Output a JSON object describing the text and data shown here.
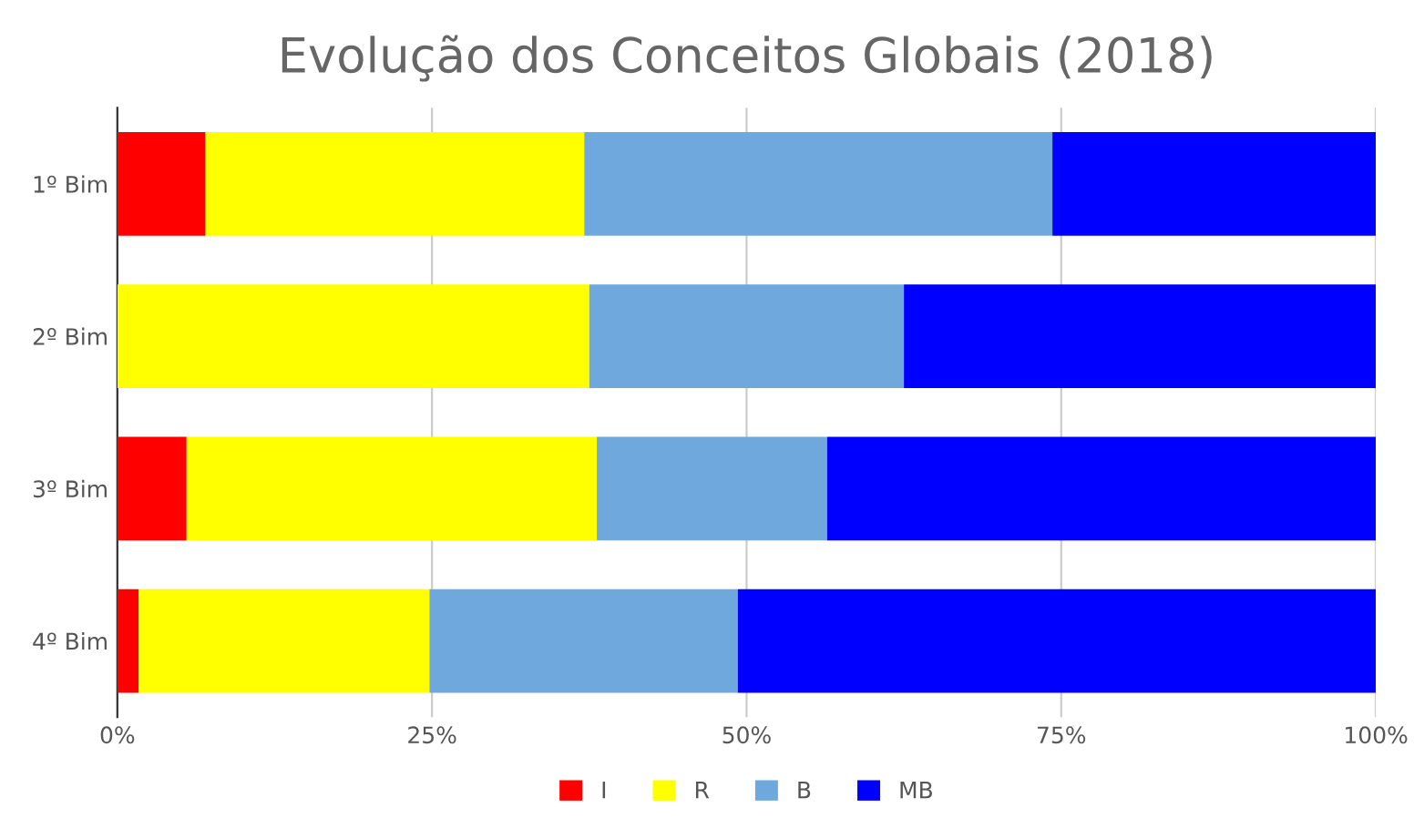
{
  "chart_data": {
    "type": "bar",
    "orientation": "horizontal",
    "stacked": true,
    "title": "Evolução dos Conceitos Globais (2018)",
    "categories": [
      "1º Bim",
      "2º Bim",
      "3º Bim",
      "4º Bim"
    ],
    "series": [
      {
        "name": "I",
        "color": "#ff0000",
        "values": [
          7.0,
          0,
          5.5,
          1.7
        ]
      },
      {
        "name": "R",
        "color": "#ffff00",
        "values": [
          30.1,
          37.5,
          32.6,
          23.1
        ]
      },
      {
        "name": "B",
        "color": "#6fa8dc",
        "values": [
          37.2,
          25.0,
          18.3,
          24.5
        ]
      },
      {
        "name": "MB",
        "color": "#0000ff",
        "values": [
          25.7,
          37.5,
          43.6,
          50.7
        ]
      }
    ],
    "xlim": [
      0,
      100
    ],
    "xticks": [
      {
        "value": 0,
        "label": "0%"
      },
      {
        "value": 25,
        "label": "25%"
      },
      {
        "value": 50,
        "label": "50%"
      },
      {
        "value": 75,
        "label": "75%"
      },
      {
        "value": 100,
        "label": "100%"
      }
    ],
    "grid": "x",
    "legend": "bottom"
  }
}
